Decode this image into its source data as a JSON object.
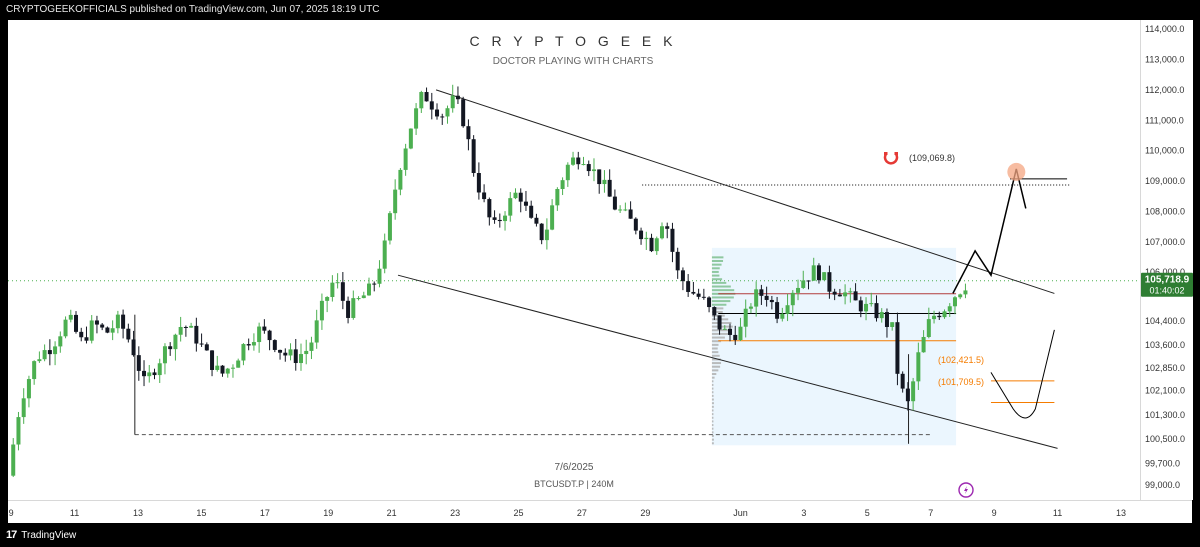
{
  "header": {
    "publish_text": "CRYPTOGEEKOFFICIALS published on TradingView.com, Jun 07, 2025 18:19 UTC"
  },
  "footer": {
    "logo_text": "TradingView",
    "logo_mark": "17"
  },
  "watermark": {
    "title": "C R Y P T O   G E E K",
    "subtitle": "DOCTOR PLAYING WITH CHARTS",
    "date": "7/6/2025",
    "symbol_line": "BTCUSDT.P | 240M"
  },
  "colors": {
    "up": "#22ab94",
    "up_body": "#4caf50",
    "down": "#131722",
    "accent_orange": "#f57c00",
    "highlight_circle": "#f4a582",
    "magnet": "#e53935",
    "price_label_bg": "#2e7d32",
    "box_fill": "#e3f2fd"
  },
  "annotations": {
    "magnet_label": "(109,069.8)",
    "level_upper": "(102,421.5)",
    "level_lower": "(101,709.5)",
    "magnet_icon": "magnet-icon",
    "alert_icon": "lightning-icon"
  },
  "price_label": {
    "price": "105,718.9",
    "countdown": "01:40:02"
  },
  "chart_data": {
    "type": "candlestick",
    "symbol": "BTCUSDT.P",
    "interval": "240M",
    "ylim": [
      98500,
      114300
    ],
    "y_ticks": [
      "114,000.0",
      "113,000.0",
      "112,000.0",
      "111,000.0",
      "110,000.0",
      "109,000.0",
      "108,000.0",
      "107,000.0",
      "106,000.0",
      "104,400.0",
      "103,600.0",
      "102,850.0",
      "102,100.0",
      "101,300.0",
      "100,500.0",
      "99,700.0",
      "99,000.0"
    ],
    "y_tick_values": [
      114000,
      113000,
      112000,
      111000,
      110000,
      109000,
      108000,
      107000,
      106000,
      104400,
      103600,
      102850,
      102100,
      101300,
      100500,
      99700,
      99000
    ],
    "x_ticks": [
      "9",
      "11",
      "13",
      "15",
      "17",
      "19",
      "21",
      "23",
      "25",
      "27",
      "29",
      "",
      "Jun",
      "3",
      "5",
      "7",
      "9",
      "11",
      "13"
    ],
    "x_tick_days": [
      9,
      11,
      13,
      15,
      17,
      19,
      21,
      23,
      25,
      27,
      29,
      31,
      32,
      34,
      36,
      38,
      40,
      42,
      44
    ],
    "x_start_day": 8.9,
    "x_end_day": 44.6,
    "last_price": 105718.9,
    "close_path": [
      [
        8.9,
        99300
      ],
      [
        9.3,
        101800
      ],
      [
        9.8,
        103200
      ],
      [
        10.3,
        103600
      ],
      [
        10.8,
        104500
      ],
      [
        11.2,
        103700
      ],
      [
        11.6,
        104300
      ],
      [
        12.0,
        104000
      ],
      [
        12.4,
        104400
      ],
      [
        12.8,
        103600
      ],
      [
        13.2,
        102300
      ],
      [
        13.6,
        103000
      ],
      [
        14.0,
        103700
      ],
      [
        14.4,
        104300
      ],
      [
        14.8,
        103900
      ],
      [
        15.2,
        103200
      ],
      [
        15.6,
        102600
      ],
      [
        16.0,
        103000
      ],
      [
        16.4,
        103700
      ],
      [
        16.8,
        104100
      ],
      [
        17.2,
        103800
      ],
      [
        17.6,
        103300
      ],
      [
        18.0,
        103200
      ],
      [
        18.4,
        103500
      ],
      [
        18.8,
        104800
      ],
      [
        19.2,
        105800
      ],
      [
        19.6,
        104700
      ],
      [
        20.0,
        105100
      ],
      [
        20.4,
        105500
      ],
      [
        20.8,
        106900
      ],
      [
        21.2,
        109300
      ],
      [
        21.6,
        110800
      ],
      [
        22.0,
        111900
      ],
      [
        22.3,
        111500
      ],
      [
        22.6,
        111200
      ],
      [
        23.0,
        111700
      ],
      [
        23.3,
        110900
      ],
      [
        23.6,
        109300
      ],
      [
        23.9,
        108300
      ],
      [
        24.2,
        107400
      ],
      [
        24.6,
        108100
      ],
      [
        25.0,
        108700
      ],
      [
        25.4,
        107600
      ],
      [
        25.8,
        107100
      ],
      [
        26.2,
        108700
      ],
      [
        26.6,
        109600
      ],
      [
        27.0,
        109900
      ],
      [
        27.3,
        109400
      ],
      [
        27.6,
        109000
      ],
      [
        28.0,
        108200
      ],
      [
        28.4,
        107800
      ],
      [
        28.8,
        107400
      ],
      [
        29.2,
        106900
      ],
      [
        29.6,
        107900
      ],
      [
        30.0,
        106000
      ],
      [
        30.4,
        105400
      ],
      [
        30.8,
        105100
      ],
      [
        31.2,
        104400
      ],
      [
        31.6,
        103900
      ],
      [
        32.0,
        104100
      ],
      [
        32.4,
        105200
      ],
      [
        32.8,
        105300
      ],
      [
        33.2,
        104600
      ],
      [
        33.6,
        105400
      ],
      [
        34.0,
        105800
      ],
      [
        34.4,
        106100
      ],
      [
        34.8,
        105500
      ],
      [
        35.2,
        105400
      ],
      [
        35.6,
        105000
      ],
      [
        36.0,
        104800
      ],
      [
        36.4,
        104600
      ],
      [
        36.8,
        104100
      ],
      [
        37.0,
        102300
      ],
      [
        37.3,
        101600
      ],
      [
        37.6,
        103200
      ],
      [
        38.0,
        104500
      ],
      [
        38.4,
        104800
      ],
      [
        38.8,
        105300
      ],
      [
        39.2,
        105718.9
      ]
    ],
    "channel": {
      "upper_start": [
        22.4,
        112000
      ],
      "upper_end": [
        41.9,
        105300
      ],
      "lower_start": [
        21.2,
        105900
      ],
      "lower_end": [
        42.0,
        100200
      ]
    },
    "horizontal_levels": [
      109069.8,
      108870,
      105290,
      104640,
      103740,
      102421.5,
      101709.5,
      100650
    ],
    "projection_path": [
      [
        38.7,
        105300
      ],
      [
        39.4,
        106700
      ],
      [
        39.9,
        105900
      ],
      [
        40.7,
        109400
      ],
      [
        41.0,
        108100
      ]
    ],
    "secondary_projection": [
      [
        39.9,
        102700
      ],
      [
        40.6,
        101500
      ],
      [
        41.3,
        101500
      ],
      [
        41.9,
        104100
      ]
    ],
    "target": 109300,
    "box": {
      "x_start_day": 31.1,
      "x_end_day": 38.8,
      "price_top": 106800,
      "price_bottom": 100300
    }
  }
}
